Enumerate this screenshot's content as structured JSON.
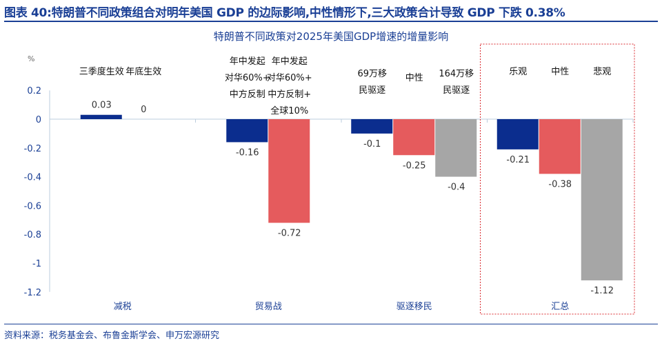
{
  "header": {
    "title": "图表 40:特朗普不同政策组合对明年美国 GDP 的边际影响,中性情形下,三大政策合计导致 GDP 下跌 0.38%"
  },
  "source": "资料来源：税务基金会、布鲁金斯学会、申万宏源研究",
  "chart_data": {
    "type": "bar",
    "title": "特朗普不同政策对2025年美国GDP增速的增量影响",
    "ylabel": "%",
    "ylim": [
      -1.2,
      0.2
    ],
    "yticks": [
      "0.2",
      "0",
      "-0.2",
      "-0.4",
      "-0.6",
      "-0.8",
      "-1",
      "-1.2"
    ],
    "categories": [
      "减税",
      "贸易战",
      "驱逐移民",
      "汇总"
    ],
    "highlight_group": "汇总",
    "colors": {
      "blue": "#0b2d8e",
      "red": "#e55b5d",
      "gray": "#a6a6a6",
      "title": "#1a3f95",
      "highlight_box": "#d9262b"
    },
    "groups": [
      {
        "category": "减税",
        "bars": [
          {
            "label": "三季度生效",
            "value": 0.03,
            "color": "blue"
          },
          {
            "label": "年底生效",
            "value": 0,
            "color": "none"
          }
        ]
      },
      {
        "category": "贸易战",
        "bars": [
          {
            "label": "年中发起\n对华60%+\n中方反制",
            "value": -0.16,
            "color": "blue"
          },
          {
            "label": "年中发起\n对华60%+\n中方反制+\n全球10%",
            "value": -0.72,
            "color": "red"
          }
        ]
      },
      {
        "category": "驱逐移民",
        "bars": [
          {
            "label": "69万移\n民驱逐",
            "value": -0.1,
            "color": "blue"
          },
          {
            "label": "中性",
            "value": -0.25,
            "color": "red"
          },
          {
            "label": "164万移\n民驱逐",
            "value": -0.4,
            "color": "gray"
          }
        ]
      },
      {
        "category": "汇总",
        "bars": [
          {
            "label": "乐观",
            "value": -0.21,
            "color": "blue"
          },
          {
            "label": "中性",
            "value": -0.38,
            "color": "red"
          },
          {
            "label": "悲观",
            "value": -1.12,
            "color": "gray"
          }
        ]
      }
    ]
  }
}
